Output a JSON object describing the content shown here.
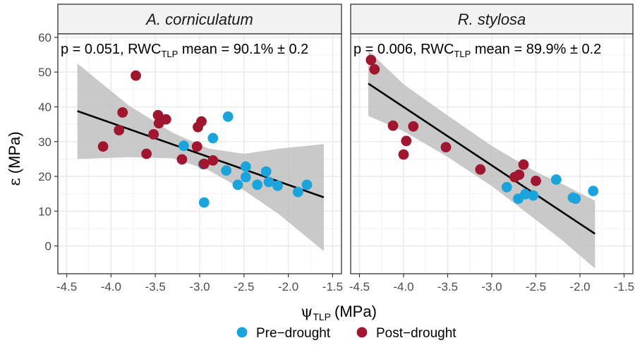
{
  "colors": {
    "pre": "#1ba3dc",
    "post": "#a0162f",
    "ribbon": "#bfbfbf",
    "fit": "#000000",
    "grid": "#ebebeb",
    "strip": "#f2f2f2",
    "panel_border": "#333333"
  },
  "chart_data": {
    "type": "scatter",
    "y_axis_label": {
      "symbol": "ε",
      "unit": "(MPa)"
    },
    "x_axis_label": {
      "symbol": "ψ",
      "subscript": "TLP",
      "unit": "(MPa)"
    },
    "xlim": [
      -4.6,
      -1.4
    ],
    "ylim": [
      -8,
      61
    ],
    "x_ticks": [
      -4.5,
      -4.0,
      -3.5,
      -3.0,
      -2.5,
      -2.0,
      -1.5
    ],
    "x_tick_labels": [
      "-4.5",
      "-4.0",
      "-3.5",
      "-3.0",
      "-2.5",
      "-2.0",
      "-1.5"
    ],
    "y_ticks": [
      0,
      10,
      20,
      30,
      40,
      50,
      60
    ],
    "y_tick_labels": [
      "0",
      "10",
      "20",
      "30",
      "40",
      "50",
      "60"
    ],
    "grid": true,
    "legend": {
      "position": "bottom",
      "entries": [
        {
          "key": "pre",
          "label": "Pre−drought"
        },
        {
          "key": "post",
          "label": "Post−drought"
        }
      ]
    },
    "panels": [
      {
        "title": "A. corniculatum",
        "annotation": {
          "prefix": "p = 0.051, RWC",
          "subscript": "TLP",
          "suffix": " mean = 90.1% ± 0.2"
        },
        "fit_line": {
          "x": [
            -4.38,
            -1.6
          ],
          "y": [
            38.8,
            14.0
          ]
        },
        "ribbon": {
          "x": [
            -4.38,
            -3.8,
            -3.3,
            -2.9,
            -2.5,
            -2.1,
            -1.6
          ],
          "upper": [
            52.5,
            40.4,
            32.5,
            28.0,
            26.5,
            28.0,
            29.3
          ],
          "lower": [
            25.0,
            25.5,
            25.2,
            21.8,
            16.0,
            9.0,
            -1.5
          ]
        },
        "series": [
          {
            "key": "pre",
            "points": [
              [
                -2.68,
                37.2
              ],
              [
                -2.85,
                31.0
              ],
              [
                -3.18,
                28.8
              ],
              [
                -2.96,
                23.5
              ],
              [
                -2.95,
                12.5
              ],
              [
                -2.7,
                21.7
              ],
              [
                -2.48,
                22.8
              ],
              [
                -2.48,
                19.8
              ],
              [
                -2.57,
                17.6
              ],
              [
                -2.35,
                17.6
              ],
              [
                -2.25,
                21.4
              ],
              [
                -2.22,
                18.4
              ],
              [
                -2.12,
                17.3
              ],
              [
                -1.89,
                15.5
              ],
              [
                -1.79,
                17.6
              ]
            ]
          },
          {
            "key": "post",
            "points": [
              [
                -3.72,
                49.0
              ],
              [
                -3.87,
                38.4
              ],
              [
                -3.91,
                33.3
              ],
              [
                -4.09,
                28.6
              ],
              [
                -3.6,
                26.5
              ],
              [
                -3.52,
                32.1
              ],
              [
                -3.47,
                37.6
              ],
              [
                -3.46,
                35.3
              ],
              [
                -3.38,
                36.4
              ],
              [
                -2.98,
                35.8
              ],
              [
                -3.02,
                34.2
              ],
              [
                -3.03,
                28.6
              ],
              [
                -3.2,
                24.9
              ],
              [
                -2.85,
                24.6
              ],
              [
                -2.95,
                23.6
              ]
            ]
          }
        ]
      },
      {
        "title": "R. stylosa",
        "annotation": {
          "prefix": "p = 0.006, RWC",
          "subscript": "TLP",
          "suffix": " mean = 89.9% ± 0.2"
        },
        "fit_line": {
          "x": [
            -4.4,
            -1.83
          ],
          "y": [
            46.7,
            3.5
          ]
        },
        "ribbon": {
          "x": [
            -4.4,
            -4.0,
            -3.5,
            -3.0,
            -2.5,
            -2.2,
            -1.83
          ],
          "upper": [
            56.2,
            46.5,
            37.5,
            28.8,
            21.3,
            17.8,
            13.0
          ],
          "lower": [
            37.4,
            33.0,
            25.6,
            17.2,
            7.5,
            1.6,
            -6.5
          ]
        },
        "series": [
          {
            "key": "pre",
            "points": [
              [
                -2.27,
                19.1
              ],
              [
                -2.62,
                14.9
              ],
              [
                -2.7,
                13.6
              ],
              [
                -2.83,
                16.9
              ],
              [
                -2.53,
                14.5
              ],
              [
                -2.05,
                13.6
              ],
              [
                -2.08,
                13.9
              ],
              [
                -1.85,
                15.8
              ]
            ]
          },
          {
            "key": "post",
            "points": [
              [
                -4.37,
                53.5
              ],
              [
                -4.33,
                50.8
              ],
              [
                -4.12,
                34.6
              ],
              [
                -3.89,
                34.4
              ],
              [
                -3.97,
                30.2
              ],
              [
                -4.0,
                26.3
              ],
              [
                -3.52,
                28.4
              ],
              [
                -3.13,
                22.0
              ],
              [
                -2.74,
                19.8
              ],
              [
                -2.69,
                20.5
              ],
              [
                -2.64,
                23.4
              ],
              [
                -2.5,
                18.7
              ]
            ]
          }
        ]
      }
    ]
  }
}
